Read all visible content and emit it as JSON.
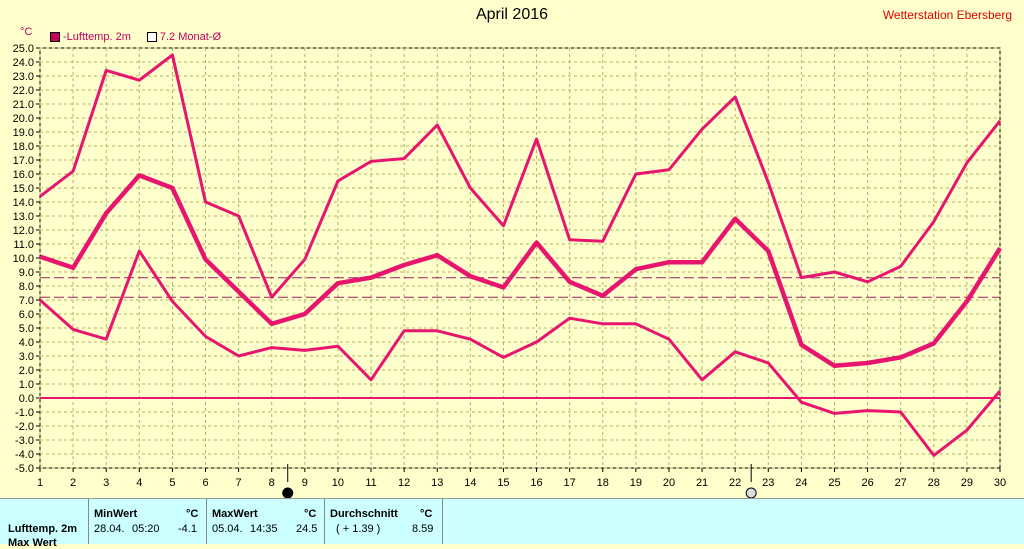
{
  "title": "April 2016",
  "station": "Wetterstation Ebersberg",
  "unit": "°C",
  "legend": {
    "series": "-Lufttemp. 2m",
    "monthly": "7.2 Monat-Ø"
  },
  "colors": {
    "background": "#ffffcc",
    "line": "#e8156e",
    "grid": "#b3b366",
    "refline": "#9a2060",
    "panel": "#ccffff"
  },
  "chart_data": {
    "type": "line",
    "title": "April 2016",
    "ylabel": "°C",
    "ylim": [
      -5.0,
      25.0
    ],
    "yticks": [
      "25.0",
      "24.0",
      "23.0",
      "22.0",
      "21.0",
      "20.0",
      "19.0",
      "18.0",
      "17.0",
      "16.0",
      "15.0",
      "14.0",
      "13.0",
      "12.0",
      "11.0",
      "10.0",
      "9.0",
      "8.0",
      "7.0",
      "6.0",
      "5.0",
      "4.0",
      "3.0",
      "2.0",
      "1.0",
      "0.0",
      "-1.0",
      "-2.0",
      "-3.0",
      "-4.0",
      "-5.0"
    ],
    "x": [
      1,
      2,
      3,
      4,
      5,
      6,
      7,
      8,
      9,
      10,
      11,
      12,
      13,
      14,
      15,
      16,
      17,
      18,
      19,
      20,
      21,
      22,
      23,
      24,
      25,
      26,
      27,
      28,
      29,
      30
    ],
    "series": [
      {
        "role": "max",
        "values": [
          14.4,
          16.2,
          23.4,
          22.7,
          24.5,
          14.0,
          13.0,
          7.2,
          9.9,
          15.5,
          16.9,
          17.1,
          19.5,
          15.0,
          12.3,
          18.5,
          11.3,
          11.2,
          16.0,
          16.3,
          19.2,
          21.5,
          15.4,
          8.6,
          9.0,
          8.3,
          9.4,
          12.6,
          16.8,
          19.8
        ]
      },
      {
        "role": "mean",
        "values": [
          10.1,
          9.3,
          13.2,
          15.9,
          15.0,
          9.9,
          7.6,
          5.3,
          6.0,
          8.2,
          8.6,
          9.5,
          10.2,
          8.7,
          7.9,
          11.1,
          8.3,
          7.3,
          9.2,
          9.7,
          9.7,
          12.8,
          10.5,
          3.8,
          2.3,
          2.5,
          2.9,
          3.9,
          6.9,
          10.7
        ]
      },
      {
        "role": "min",
        "values": [
          7.0,
          4.9,
          4.2,
          10.5,
          6.9,
          4.4,
          3.0,
          3.6,
          3.4,
          3.7,
          1.3,
          4.8,
          4.8,
          4.2,
          2.9,
          4.0,
          5.7,
          5.3,
          5.3,
          4.2,
          1.3,
          3.3,
          2.5,
          -0.3,
          -1.1,
          -0.9,
          -1.0,
          -4.1,
          -2.3,
          0.5
        ]
      }
    ],
    "reference_lines": [
      {
        "name": "monthly_mean_dashed",
        "value": 8.59
      },
      {
        "name": "long_term_mean_dashed",
        "value": 7.2
      },
      {
        "name": "zero",
        "value": 0.0
      }
    ],
    "markers": [
      {
        "day": 8,
        "symbol": "new-moon"
      },
      {
        "day": 22,
        "symbol": "full-moon"
      }
    ],
    "grid": true
  },
  "stats": {
    "row_label": "Lufttemp. 2m",
    "row_label2": "Max Wert",
    "min": {
      "header": "MinWert",
      "unit": "°C",
      "date": "28.04.",
      "time": "05:20",
      "value": "-4.1"
    },
    "max": {
      "header": "MaxWert",
      "unit": "°C",
      "date": "05.04.",
      "time": "14:35",
      "value": "24.5"
    },
    "avg": {
      "header": "Durchschnitt",
      "unit": "°C",
      "diff": "( + 1.39 )",
      "value": "8.59"
    }
  }
}
